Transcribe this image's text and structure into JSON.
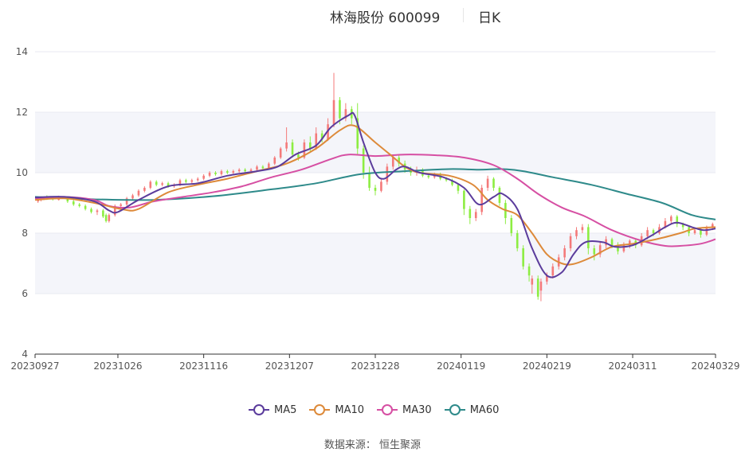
{
  "header": {
    "stock": "林海股份 600099",
    "period": "日K"
  },
  "source": "数据来源： 恒生聚源",
  "colors": {
    "up": "#f47a7a",
    "down": "#8ded42",
    "grid": "#e8eaf2",
    "band": "#f4f5fa",
    "axis": "#333333"
  },
  "chart_data": {
    "type": "candlestick",
    "title": "林海股份 600099",
    "x_ticks": [
      "20230927",
      "20231026",
      "20231116",
      "20231207",
      "20231228",
      "20240119",
      "20240219",
      "20240311",
      "20240329"
    ],
    "x_tick_positions": [
      0,
      28,
      57,
      86,
      115,
      144,
      173,
      202,
      230
    ],
    "y_ticks": [
      "14",
      "12",
      "10",
      "8",
      "6",
      "4"
    ],
    "ylim": [
      4,
      14
    ],
    "x_count": 230,
    "legend": [
      {
        "name": "MA5",
        "color": "#5b3c9c"
      },
      {
        "name": "MA10",
        "color": "#dd8a3a"
      },
      {
        "name": "MA30",
        "color": "#d64fa3"
      },
      {
        "name": "MA60",
        "color": "#2e8a8a"
      }
    ],
    "ma_series": [
      {
        "name": "MA5",
        "points": [
          [
            0,
            9.18
          ],
          [
            10,
            9.2
          ],
          [
            20,
            9.05
          ],
          [
            25,
            8.75
          ],
          [
            28,
            8.7
          ],
          [
            35,
            9.1
          ],
          [
            45,
            9.55
          ],
          [
            55,
            9.65
          ],
          [
            65,
            9.9
          ],
          [
            75,
            10.05
          ],
          [
            82,
            10.2
          ],
          [
            88,
            10.6
          ],
          [
            95,
            10.9
          ],
          [
            100,
            11.5
          ],
          [
            106,
            11.9
          ],
          [
            108,
            11.9
          ],
          [
            111,
            11.0
          ],
          [
            115,
            10.0
          ],
          [
            118,
            9.8
          ],
          [
            122,
            10.1
          ],
          [
            125,
            10.2
          ],
          [
            130,
            10.0
          ],
          [
            138,
            9.85
          ],
          [
            145,
            9.5
          ],
          [
            150,
            8.95
          ],
          [
            155,
            9.2
          ],
          [
            158,
            9.3
          ],
          [
            163,
            8.8
          ],
          [
            168,
            7.5
          ],
          [
            173,
            6.6
          ],
          [
            178,
            6.7
          ],
          [
            182,
            7.3
          ],
          [
            186,
            7.7
          ],
          [
            192,
            7.7
          ],
          [
            196,
            7.55
          ],
          [
            202,
            7.6
          ],
          [
            208,
            7.9
          ],
          [
            213,
            8.2
          ],
          [
            217,
            8.35
          ],
          [
            222,
            8.2
          ],
          [
            226,
            8.1
          ],
          [
            230,
            8.15
          ]
        ]
      },
      {
        "name": "MA10",
        "points": [
          [
            0,
            9.1
          ],
          [
            10,
            9.15
          ],
          [
            20,
            9.0
          ],
          [
            30,
            8.78
          ],
          [
            35,
            8.8
          ],
          [
            45,
            9.35
          ],
          [
            55,
            9.6
          ],
          [
            65,
            9.8
          ],
          [
            75,
            10.05
          ],
          [
            85,
            10.3
          ],
          [
            95,
            10.8
          ],
          [
            103,
            11.4
          ],
          [
            108,
            11.55
          ],
          [
            115,
            11.0
          ],
          [
            120,
            10.6
          ],
          [
            125,
            10.2
          ],
          [
            130,
            10.0
          ],
          [
            140,
            9.9
          ],
          [
            148,
            9.6
          ],
          [
            153,
            9.1
          ],
          [
            158,
            8.8
          ],
          [
            163,
            8.6
          ],
          [
            168,
            8.0
          ],
          [
            173,
            7.3
          ],
          [
            178,
            7.0
          ],
          [
            182,
            6.98
          ],
          [
            188,
            7.2
          ],
          [
            195,
            7.55
          ],
          [
            202,
            7.65
          ],
          [
            210,
            7.8
          ],
          [
            218,
            8.0
          ],
          [
            223,
            8.15
          ],
          [
            230,
            8.2
          ]
        ]
      },
      {
        "name": "MA30",
        "points": [
          [
            0,
            9.15
          ],
          [
            10,
            9.2
          ],
          [
            20,
            9.1
          ],
          [
            25,
            8.9
          ],
          [
            32,
            8.85
          ],
          [
            40,
            9.05
          ],
          [
            50,
            9.2
          ],
          [
            60,
            9.35
          ],
          [
            70,
            9.55
          ],
          [
            80,
            9.85
          ],
          [
            90,
            10.1
          ],
          [
            100,
            10.45
          ],
          [
            106,
            10.6
          ],
          [
            115,
            10.55
          ],
          [
            125,
            10.6
          ],
          [
            135,
            10.58
          ],
          [
            145,
            10.5
          ],
          [
            155,
            10.25
          ],
          [
            163,
            9.8
          ],
          [
            170,
            9.3
          ],
          [
            178,
            8.85
          ],
          [
            186,
            8.55
          ],
          [
            195,
            8.1
          ],
          [
            205,
            7.75
          ],
          [
            213,
            7.58
          ],
          [
            218,
            7.58
          ],
          [
            225,
            7.65
          ],
          [
            230,
            7.8
          ]
        ]
      },
      {
        "name": "MA60",
        "points": [
          [
            0,
            9.2
          ],
          [
            20,
            9.12
          ],
          [
            40,
            9.1
          ],
          [
            60,
            9.22
          ],
          [
            80,
            9.45
          ],
          [
            95,
            9.65
          ],
          [
            110,
            9.95
          ],
          [
            125,
            10.05
          ],
          [
            140,
            10.12
          ],
          [
            150,
            10.1
          ],
          [
            158,
            10.12
          ],
          [
            165,
            10.05
          ],
          [
            175,
            9.85
          ],
          [
            188,
            9.6
          ],
          [
            200,
            9.3
          ],
          [
            212,
            9.0
          ],
          [
            222,
            8.6
          ],
          [
            230,
            8.45
          ]
        ]
      }
    ],
    "candles": [
      [
        1,
        9.05,
        9.1,
        9.12,
        9.0
      ],
      [
        2,
        9.1,
        9.18,
        9.22,
        9.05
      ],
      [
        4,
        9.2,
        9.15,
        9.25,
        9.1
      ],
      [
        6,
        9.15,
        9.12,
        9.2,
        9.08
      ],
      [
        8,
        9.1,
        9.2,
        9.24,
        9.08
      ],
      [
        11,
        9.15,
        9.05,
        9.18,
        9.0
      ],
      [
        13,
        9.05,
        8.95,
        9.1,
        8.9
      ],
      [
        15,
        8.95,
        8.9,
        9.0,
        8.85
      ],
      [
        17,
        8.9,
        8.8,
        8.95,
        8.75
      ],
      [
        19,
        8.8,
        8.7,
        8.85,
        8.65
      ],
      [
        21,
        8.7,
        8.75,
        8.8,
        8.6
      ],
      [
        23,
        8.75,
        8.55,
        8.8,
        8.5
      ],
      [
        24,
        8.6,
        8.4,
        8.65,
        8.35
      ],
      [
        25,
        8.4,
        8.6,
        8.65,
        8.35
      ],
      [
        27,
        8.6,
        8.9,
        8.95,
        8.55
      ],
      [
        29,
        8.9,
        8.95,
        9.0,
        8.85
      ],
      [
        31,
        8.95,
        9.15,
        9.2,
        8.9
      ],
      [
        33,
        9.15,
        9.25,
        9.3,
        9.1
      ],
      [
        35,
        9.25,
        9.4,
        9.45,
        9.2
      ],
      [
        37,
        9.4,
        9.5,
        9.55,
        9.35
      ],
      [
        39,
        9.5,
        9.7,
        9.75,
        9.45
      ],
      [
        41,
        9.7,
        9.6,
        9.75,
        9.55
      ],
      [
        43,
        9.6,
        9.65,
        9.7,
        9.55
      ],
      [
        45,
        9.65,
        9.55,
        9.7,
        9.5
      ],
      [
        47,
        9.55,
        9.6,
        9.65,
        9.5
      ],
      [
        49,
        9.6,
        9.75,
        9.8,
        9.55
      ],
      [
        51,
        9.75,
        9.7,
        9.8,
        9.65
      ],
      [
        53,
        9.7,
        9.75,
        9.8,
        9.65
      ],
      [
        55,
        9.75,
        9.8,
        9.85,
        9.7
      ],
      [
        57,
        9.8,
        9.9,
        9.95,
        9.75
      ],
      [
        59,
        9.9,
        10.0,
        10.05,
        9.85
      ],
      [
        61,
        10.0,
        9.95,
        10.05,
        9.9
      ],
      [
        63,
        9.95,
        10.05,
        10.1,
        9.9
      ],
      [
        65,
        10.05,
        10.0,
        10.1,
        9.95
      ],
      [
        67,
        10.0,
        10.05,
        10.1,
        9.95
      ],
      [
        69,
        10.05,
        10.1,
        10.15,
        10.0
      ],
      [
        71,
        10.1,
        10.05,
        10.15,
        10.0
      ],
      [
        73,
        10.05,
        10.1,
        10.15,
        10.0
      ],
      [
        75,
        10.1,
        10.2,
        10.25,
        10.05
      ],
      [
        77,
        10.2,
        10.15,
        10.25,
        10.1
      ],
      [
        79,
        10.15,
        10.3,
        10.35,
        10.1
      ],
      [
        81,
        10.3,
        10.5,
        10.55,
        10.25
      ],
      [
        83,
        10.5,
        10.8,
        10.85,
        10.45
      ],
      [
        85,
        10.8,
        11.0,
        11.5,
        10.7
      ],
      [
        87,
        11.0,
        10.6,
        11.1,
        10.5
      ],
      [
        89,
        10.6,
        10.5,
        10.7,
        10.4
      ],
      [
        91,
        10.5,
        11.0,
        11.1,
        10.45
      ],
      [
        93,
        11.0,
        10.8,
        11.2,
        10.7
      ],
      [
        95,
        10.8,
        11.3,
        11.5,
        10.75
      ],
      [
        97,
        11.3,
        11.1,
        11.4,
        11.0
      ],
      [
        99,
        11.1,
        11.6,
        11.8,
        11.05
      ],
      [
        101,
        11.6,
        12.4,
        13.3,
        11.5
      ],
      [
        103,
        12.4,
        11.8,
        12.5,
        11.6
      ],
      [
        105,
        11.8,
        12.1,
        12.3,
        11.7
      ],
      [
        107,
        12.1,
        11.8,
        12.2,
        11.6
      ],
      [
        109,
        11.8,
        10.8,
        12.3,
        10.6
      ],
      [
        111,
        10.8,
        10.0,
        10.9,
        9.8
      ],
      [
        113,
        10.0,
        9.5,
        10.2,
        9.4
      ],
      [
        115,
        9.5,
        9.4,
        9.6,
        9.25
      ],
      [
        117,
        9.4,
        9.7,
        9.8,
        9.35
      ],
      [
        119,
        9.7,
        10.2,
        10.3,
        9.6
      ],
      [
        121,
        10.2,
        10.5,
        10.6,
        10.1
      ],
      [
        123,
        10.5,
        10.3,
        10.6,
        10.2
      ],
      [
        125,
        10.3,
        10.1,
        10.4,
        10.0
      ],
      [
        127,
        10.1,
        10.0,
        10.2,
        9.9
      ],
      [
        129,
        10.0,
        10.1,
        10.2,
        9.9
      ],
      [
        131,
        10.1,
        9.9,
        10.15,
        9.85
      ],
      [
        133,
        9.9,
        9.85,
        9.95,
        9.8
      ],
      [
        135,
        9.85,
        9.95,
        10.0,
        9.8
      ],
      [
        137,
        9.95,
        9.8,
        10.0,
        9.75
      ],
      [
        139,
        9.8,
        9.75,
        9.85,
        9.7
      ],
      [
        141,
        9.75,
        9.6,
        9.8,
        9.55
      ],
      [
        143,
        9.6,
        9.4,
        9.65,
        9.3
      ],
      [
        145,
        9.4,
        8.8,
        9.45,
        8.6
      ],
      [
        147,
        8.8,
        8.5,
        8.9,
        8.3
      ],
      [
        149,
        8.5,
        8.7,
        8.8,
        8.4
      ],
      [
        151,
        8.7,
        9.5,
        9.6,
        8.6
      ],
      [
        153,
        9.5,
        9.8,
        9.9,
        9.4
      ],
      [
        155,
        9.8,
        9.5,
        9.85,
        9.4
      ],
      [
        157,
        9.5,
        9.0,
        9.55,
        8.9
      ],
      [
        159,
        9.0,
        8.5,
        9.1,
        8.3
      ],
      [
        161,
        8.5,
        8.0,
        8.6,
        7.9
      ],
      [
        163,
        8.0,
        7.5,
        8.1,
        7.4
      ],
      [
        165,
        7.5,
        6.9,
        7.6,
        6.8
      ],
      [
        167,
        6.9,
        6.6,
        7.0,
        6.4
      ],
      [
        168,
        6.3,
        6.5,
        6.6,
        6.0
      ],
      [
        170,
        6.5,
        5.9,
        6.6,
        5.8
      ],
      [
        171,
        6.1,
        6.4,
        6.5,
        5.75
      ],
      [
        173,
        6.4,
        6.6,
        6.7,
        6.3
      ],
      [
        175,
        6.6,
        6.9,
        7.0,
        6.5
      ],
      [
        177,
        6.9,
        7.2,
        7.3,
        6.8
      ],
      [
        179,
        7.2,
        7.5,
        7.6,
        7.1
      ],
      [
        181,
        7.5,
        7.9,
        8.0,
        7.4
      ],
      [
        183,
        7.9,
        8.1,
        8.2,
        7.8
      ],
      [
        185,
        8.1,
        8.2,
        8.3,
        8.0
      ],
      [
        187,
        8.2,
        7.5,
        8.3,
        7.3
      ],
      [
        189,
        7.5,
        7.3,
        7.6,
        7.1
      ],
      [
        191,
        7.3,
        7.6,
        7.7,
        7.2
      ],
      [
        193,
        7.6,
        7.8,
        7.9,
        7.5
      ],
      [
        195,
        7.8,
        7.6,
        7.85,
        7.5
      ],
      [
        197,
        7.6,
        7.4,
        7.7,
        7.3
      ],
      [
        199,
        7.4,
        7.6,
        7.7,
        7.35
      ],
      [
        201,
        7.6,
        7.75,
        7.8,
        7.5
      ],
      [
        203,
        7.75,
        7.6,
        7.8,
        7.5
      ],
      [
        205,
        7.6,
        7.9,
        8.0,
        7.55
      ],
      [
        207,
        7.9,
        8.1,
        8.2,
        7.8
      ],
      [
        209,
        8.1,
        8.0,
        8.15,
        7.9
      ],
      [
        211,
        8.0,
        8.2,
        8.3,
        7.95
      ],
      [
        213,
        8.2,
        8.4,
        8.5,
        8.15
      ],
      [
        215,
        8.4,
        8.55,
        8.6,
        8.3
      ],
      [
        217,
        8.55,
        8.3,
        8.6,
        8.2
      ],
      [
        219,
        8.3,
        8.2,
        8.35,
        8.1
      ],
      [
        221,
        8.2,
        8.0,
        8.25,
        7.9
      ],
      [
        223,
        8.0,
        8.1,
        8.2,
        7.95
      ],
      [
        225,
        8.1,
        7.95,
        8.15,
        7.85
      ],
      [
        227,
        7.95,
        8.2,
        8.25,
        7.9
      ],
      [
        229,
        8.2,
        8.3,
        8.35,
        8.1
      ]
    ]
  }
}
